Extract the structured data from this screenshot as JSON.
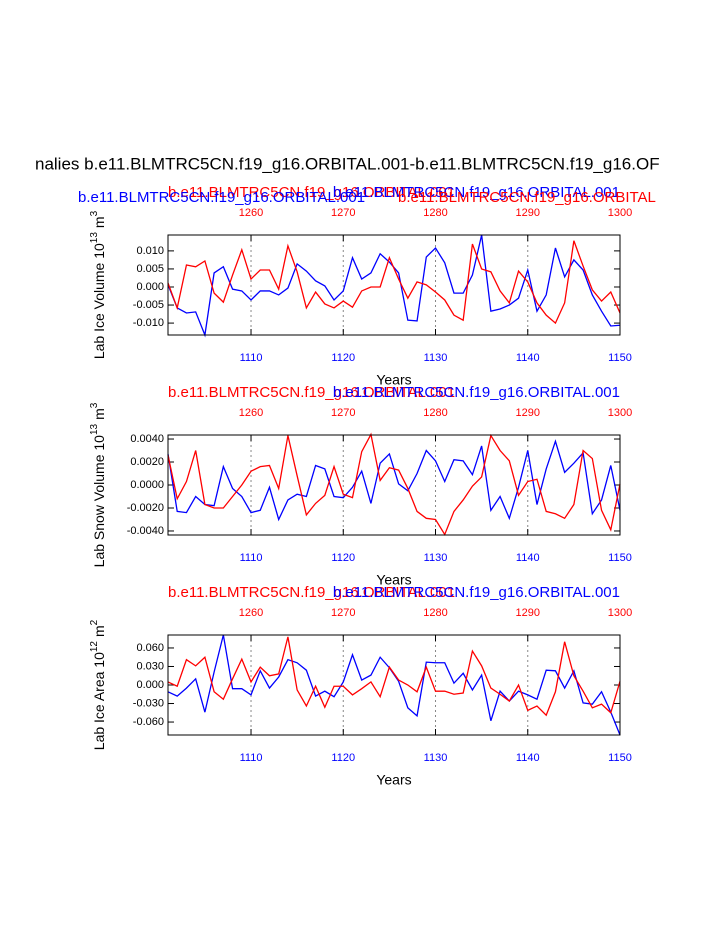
{
  "chart_data": [
    {
      "type": "line",
      "title": "nalies b.e11.BLMTRC5CN.f19_g16.ORBITAL.001-b.e11.BLMTRC5CN.f19_g16.OF",
      "left_string": "b.e11.BLMTRC5CN.f19_g16.ORBITAL.001",
      "right_string": "b.e11.BLMTRC5CN.f19_g16.ORBITAL.001",
      "annotations": [
        {
          "text": "b.e11.BLMTRC5CN.f19_g16.ORBITAL.001",
          "color": "#0000ff"
        },
        {
          "text": "b.e11.BLMTRC5CN.f19_g16.ORBITAL",
          "color": "#ff0000"
        }
      ],
      "ylabel": [
        "Lab Ice Volume 10",
        "13",
        "m",
        "3"
      ],
      "xlabel": "Years",
      "grid": true,
      "xlim": [
        1101,
        1150
      ],
      "x2lim": [
        1251,
        1300
      ],
      "xticks": [
        1110,
        1120,
        1130,
        1140,
        1150
      ],
      "x2ticks": [
        1260,
        1270,
        1280,
        1290,
        1300
      ],
      "ylim": [
        -0.0133,
        0.0144
      ],
      "yticks": [
        {
          "value": 0.01,
          "label": "0.010"
        },
        0.005,
        {
          "value": 0,
          "label": "0.000"
        },
        -0.005,
        {
          "value": -0.01,
          "label": "-0.010"
        }
      ],
      "x": [
        1101,
        1102,
        1103,
        1104,
        1105,
        1106,
        1107,
        1108,
        1109,
        1110,
        1111,
        1112,
        1113,
        1114,
        1115,
        1116,
        1117,
        1118,
        1119,
        1120,
        1121,
        1122,
        1123,
        1124,
        1125,
        1126,
        1127,
        1128,
        1129,
        1130,
        1131,
        1132,
        1133,
        1134,
        1135,
        1136,
        1137,
        1138,
        1139,
        1140,
        1141,
        1142,
        1143,
        1144,
        1145,
        1146,
        1147,
        1148,
        1149,
        1150
      ],
      "x2": [
        1251,
        1252,
        1253,
        1254,
        1255,
        1256,
        1257,
        1258,
        1259,
        1260,
        1261,
        1262,
        1263,
        1264,
        1265,
        1266,
        1267,
        1268,
        1269,
        1270,
        1271,
        1272,
        1273,
        1274,
        1275,
        1276,
        1277,
        1278,
        1279,
        1280,
        1281,
        1282,
        1283,
        1284,
        1285,
        1286,
        1287,
        1288,
        1289,
        1290,
        1291,
        1292,
        1293,
        1294,
        1295,
        1296,
        1297,
        1298,
        1299,
        1300
      ],
      "series": [
        {
          "color": "#0000ff",
          "axis": "x",
          "values": [
            0.0006,
            -0.0058,
            -0.0072,
            -0.0069,
            -0.0133,
            0.0039,
            0.0056,
            -0.0006,
            -0.0011,
            -0.0036,
            -0.0011,
            -0.0011,
            -0.0022,
            -0.0003,
            0.0064,
            0.0044,
            0.0017,
            0.0003,
            -0.0036,
            -0.0011,
            0.0081,
            0.0022,
            0.0039,
            0.0092,
            0.0069,
            0.0039,
            -0.0092,
            -0.0094,
            0.0083,
            0.0108,
            0.0067,
            -0.0017,
            -0.0017,
            0.0033,
            0.0144,
            -0.0067,
            -0.0061,
            -0.005,
            -0.0031,
            0.0047,
            -0.0067,
            -0.0022,
            0.0108,
            0.0028,
            0.0075,
            0.0047,
            -0.0022,
            -0.0067,
            -0.0108,
            -0.0106
          ]
        },
        {
          "color": "#ff0000",
          "axis": "x2",
          "values": [
            0.0011,
            -0.0058,
            0.0061,
            0.0056,
            0.0072,
            -0.0017,
            -0.0042,
            0.0033,
            0.0103,
            0.0022,
            0.0047,
            0.0047,
            -0.0006,
            0.0114,
            0.0042,
            -0.0058,
            -0.0014,
            -0.0047,
            -0.0058,
            -0.0039,
            -0.0056,
            -0.0011,
            0,
            0,
            0.0081,
            0.0022,
            -0.0031,
            0.0014,
            0.0006,
            -0.0014,
            -0.0036,
            -0.0078,
            -0.0092,
            0.0119,
            0.005,
            0.0042,
            -0.0011,
            -0.0044,
            0.0044,
            0.0014,
            -0.0044,
            -0.0078,
            -0.01,
            -0.0044,
            0.0128,
            0.0058,
            -0.0008,
            -0.0039,
            -0.0014,
            -0.0072
          ]
        }
      ]
    },
    {
      "type": "line",
      "left_string": "b.e11.BLMTRC5CN.f19_g16.ORBITAL.001",
      "right_string": "b.e11.BLMTRC5CN.f19_g16.ORBITAL.001",
      "ylabel": [
        "Lab Snow Volume 10",
        "13",
        "m",
        "3"
      ],
      "xlabel": "Years",
      "grid": true,
      "xlim": [
        1101,
        1150
      ],
      "x2lim": [
        1251,
        1300
      ],
      "xticks": [
        1110,
        1120,
        1130,
        1140,
        1150
      ],
      "x2ticks": [
        1260,
        1270,
        1280,
        1290,
        1300
      ],
      "ylim": [
        -0.00435,
        0.00435
      ],
      "yticks": [
        {
          "value": 0.004,
          "label": "0.0040"
        },
        {
          "value": 0.002,
          "label": "0.0020"
        },
        {
          "value": 0,
          "label": "0.0000"
        },
        {
          "value": -0.002,
          "label": "-0.0020"
        },
        {
          "value": -0.004,
          "label": "-0.0040"
        }
      ],
      "x": [
        1101,
        1102,
        1103,
        1104,
        1105,
        1106,
        1107,
        1108,
        1109,
        1110,
        1111,
        1112,
        1113,
        1114,
        1115,
        1116,
        1117,
        1118,
        1119,
        1120,
        1121,
        1122,
        1123,
        1124,
        1125,
        1126,
        1127,
        1128,
        1129,
        1130,
        1131,
        1132,
        1133,
        1134,
        1135,
        1136,
        1137,
        1138,
        1139,
        1140,
        1141,
        1142,
        1143,
        1144,
        1145,
        1146,
        1147,
        1148,
        1149,
        1150
      ],
      "x2": [
        1251,
        1252,
        1253,
        1254,
        1255,
        1256,
        1257,
        1258,
        1259,
        1260,
        1261,
        1262,
        1263,
        1264,
        1265,
        1266,
        1267,
        1268,
        1269,
        1270,
        1271,
        1272,
        1273,
        1274,
        1275,
        1276,
        1277,
        1278,
        1279,
        1280,
        1281,
        1282,
        1283,
        1284,
        1285,
        1286,
        1287,
        1288,
        1289,
        1290,
        1291,
        1292,
        1293,
        1294,
        1295,
        1296,
        1297,
        1298,
        1299,
        1300
      ],
      "series": [
        {
          "color": "#0000ff",
          "axis": "x",
          "values": [
            0.0027,
            -0.0023,
            -0.0024,
            -0.001,
            -0.0017,
            -0.0018,
            0.0016,
            -0.0003,
            -0.001,
            -0.0024,
            -0.0022,
            -0.0002,
            -0.003,
            -0.0013,
            -0.0008,
            -0.001,
            0.0017,
            0.0014,
            -0.001,
            -0.0011,
            -0.0002,
            0.0012,
            -0.0016,
            0.0019,
            0.0027,
            0.0001,
            -0.0005,
            0.001,
            0.003,
            0.0021,
            0.0003,
            0.0022,
            0.0021,
            0.0009,
            0.0034,
            -0.0022,
            -0.001,
            -0.0029,
            -0.0002,
            0.003,
            -0.0017,
            0.0014,
            0.0038,
            0.0011,
            0.0019,
            0.0028,
            -0.0025,
            -0.0013,
            0.0017,
            -0.0022
          ]
        },
        {
          "color": "#ff0000",
          "axis": "x2",
          "values": [
            0.0026,
            -0.0012,
            0.0003,
            0.003,
            -0.0017,
            -0.002,
            -0.002,
            -0.001,
            0,
            0.0012,
            0.0016,
            0.0017,
            -0.0003,
            0.0043,
            0.0008,
            -0.0026,
            -0.0016,
            -0.0009,
            0.0016,
            -0.0008,
            -0.0011,
            0.0029,
            0.0044,
            0.0004,
            0.0015,
            0.0013,
            -0.0003,
            -0.0023,
            -0.0029,
            -0.003,
            -0.0043,
            -0.0023,
            -0.0013,
            -0.0001,
            0.0007,
            0.0043,
            0.003,
            0.0021,
            -0.0009,
            0.0003,
            0.0005,
            -0.0023,
            -0.0025,
            -0.0029,
            -0.0017,
            0.003,
            0.0023,
            -0.0022,
            -0.0039,
            0.0001
          ]
        }
      ]
    },
    {
      "type": "line",
      "left_string": "b.e11.BLMTRC5CN.f19_g16.ORBITAL.001",
      "right_string": "b.e11.BLMTRC5CN.f19_g16.ORBITAL.001",
      "ylabel": [
        "Lab Ice Area 10",
        "12",
        "m",
        "2"
      ],
      "xlabel": "Years",
      "grid": true,
      "xlim": [
        1101,
        1150
      ],
      "x2lim": [
        1251,
        1300
      ],
      "xticks": [
        1110,
        1120,
        1130,
        1140,
        1150
      ],
      "x2ticks": [
        1260,
        1270,
        1280,
        1290,
        1300
      ],
      "ylim": [
        -0.081,
        0.081
      ],
      "yticks": [
        {
          "value": 0.06,
          "label": "0.060"
        },
        {
          "value": 0.03,
          "label": "0.030"
        },
        {
          "value": 0,
          "label": "0.000"
        },
        {
          "value": -0.03,
          "label": "-0.030"
        },
        {
          "value": -0.06,
          "label": "-0.060"
        }
      ],
      "x": [
        1101,
        1102,
        1103,
        1104,
        1105,
        1106,
        1107,
        1108,
        1109,
        1110,
        1111,
        1112,
        1113,
        1114,
        1115,
        1116,
        1117,
        1118,
        1119,
        1120,
        1121,
        1122,
        1123,
        1124,
        1125,
        1126,
        1127,
        1128,
        1129,
        1130,
        1131,
        1132,
        1133,
        1134,
        1135,
        1136,
        1137,
        1138,
        1139,
        1140,
        1141,
        1142,
        1143,
        1144,
        1145,
        1146,
        1147,
        1148,
        1149,
        1150
      ],
      "x2": [
        1251,
        1252,
        1253,
        1254,
        1255,
        1256,
        1257,
        1258,
        1259,
        1260,
        1261,
        1262,
        1263,
        1264,
        1265,
        1266,
        1267,
        1268,
        1269,
        1270,
        1271,
        1272,
        1273,
        1274,
        1275,
        1276,
        1277,
        1278,
        1279,
        1280,
        1281,
        1282,
        1283,
        1284,
        1285,
        1286,
        1287,
        1288,
        1289,
        1290,
        1291,
        1292,
        1293,
        1294,
        1295,
        1296,
        1297,
        1298,
        1299,
        1300
      ],
      "series": [
        {
          "color": "#0000ff",
          "axis": "x",
          "values": [
            -0.011,
            -0.018,
            -0.005,
            0.01,
            -0.044,
            0.021,
            0.081,
            -0.006,
            -0.006,
            -0.016,
            0.023,
            -0.005,
            0.013,
            0.041,
            0.036,
            0.024,
            -0.018,
            -0.01,
            -0.019,
            0.005,
            0.049,
            0.008,
            0.016,
            0.045,
            0.028,
            0.006,
            -0.037,
            -0.05,
            0.037,
            0.036,
            0.036,
            0.003,
            0.019,
            -0.008,
            0.016,
            -0.058,
            -0.01,
            -0.026,
            -0.01,
            -0.016,
            -0.023,
            0.024,
            0.023,
            -0.005,
            0.023,
            -0.029,
            -0.031,
            -0.011,
            -0.044,
            -0.081
          ]
        },
        {
          "color": "#ff0000",
          "axis": "x2",
          "values": [
            0.005,
            -0.002,
            0.041,
            0.031,
            0.045,
            -0.011,
            -0.023,
            0.01,
            0.042,
            0.005,
            0.029,
            0.015,
            0.018,
            0.078,
            -0.008,
            -0.034,
            -0.002,
            -0.036,
            -0.002,
            -0.002,
            -0.016,
            -0.006,
            0.005,
            -0.019,
            0.029,
            0.008,
            0,
            -0.011,
            0.029,
            -0.01,
            -0.01,
            -0.015,
            -0.013,
            0.055,
            0.031,
            -0.005,
            -0.015,
            -0.026,
            0,
            -0.041,
            -0.034,
            -0.049,
            -0.011,
            0.07,
            0.015,
            -0.01,
            -0.037,
            -0.031,
            -0.045,
            0.006
          ]
        }
      ]
    }
  ]
}
